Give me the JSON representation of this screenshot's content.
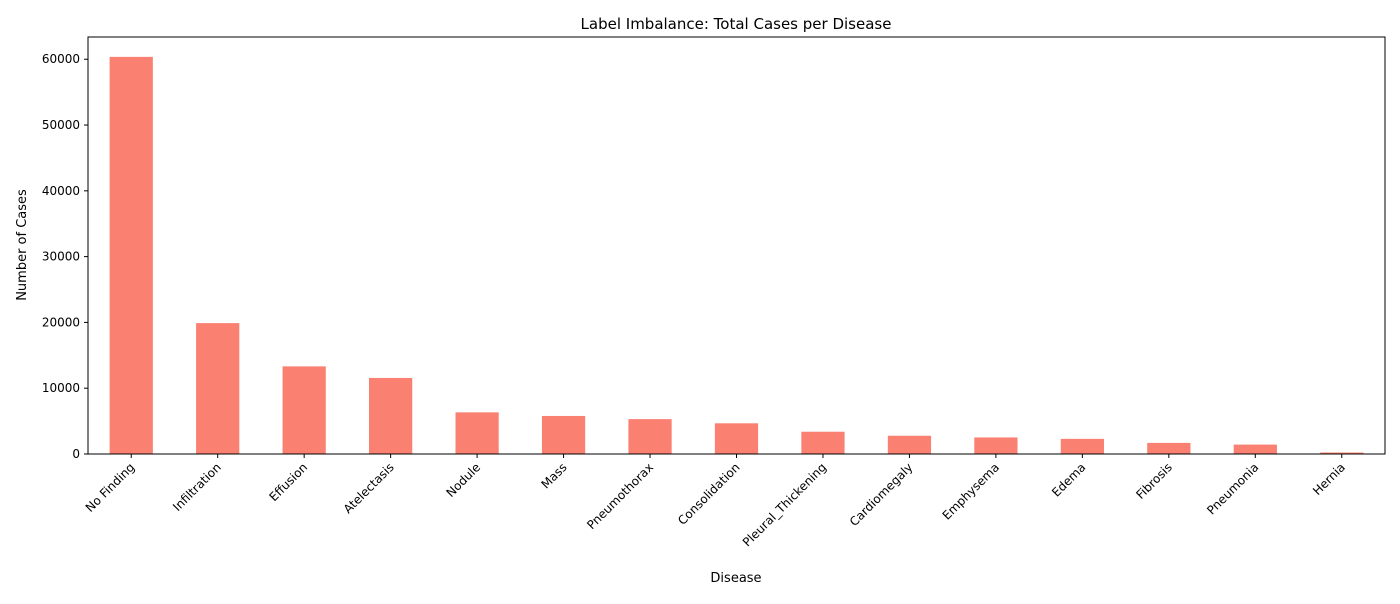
{
  "chart_data": {
    "type": "bar",
    "title": "Label Imbalance: Total Cases per Disease",
    "xlabel": "Disease",
    "ylabel": "Number of Cases",
    "categories": [
      "No Finding",
      "Infiltration",
      "Effusion",
      "Atelectasis",
      "Nodule",
      "Mass",
      "Pneumothorax",
      "Consolidation",
      "Pleural_Thickening",
      "Cardiomegaly",
      "Emphysema",
      "Edema",
      "Fibrosis",
      "Pneumonia",
      "Hernia"
    ],
    "values": [
      60361,
      19894,
      13317,
      11559,
      6331,
      5782,
      5302,
      4667,
      3385,
      2776,
      2516,
      2303,
      1686,
      1431,
      227
    ],
    "ylim": [
      0,
      63380
    ],
    "yticks": [
      0,
      10000,
      20000,
      30000,
      40000,
      50000,
      60000
    ],
    "ytick_labels": [
      "0",
      "10000",
      "20000",
      "30000",
      "40000",
      "50000",
      "60000"
    ],
    "bar_color": "#FA8072",
    "grid": false,
    "legend": "none"
  }
}
